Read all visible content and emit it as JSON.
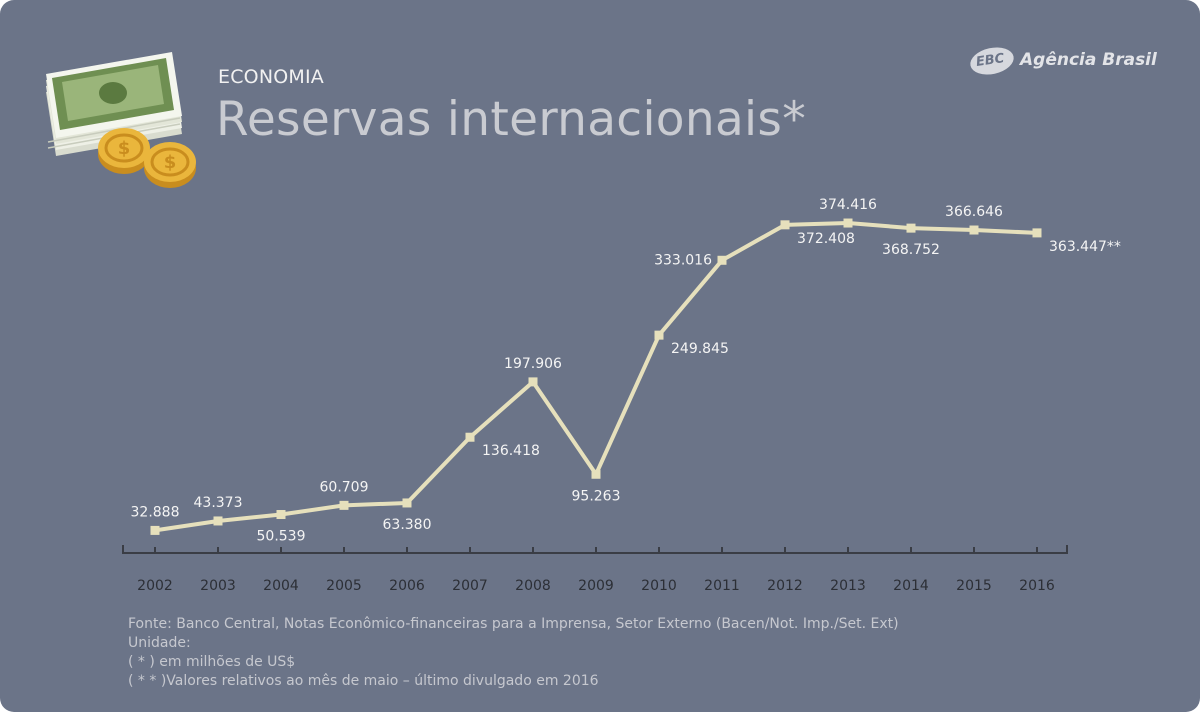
{
  "header": {
    "kicker": "ECONOMIA",
    "title": "Reservas internacionais*",
    "logo_mark": "EBC",
    "logo_text": "Agência Brasil"
  },
  "illustration": {
    "icon": "money-stack-coins-icon",
    "colors": {
      "bill": "#7a9a5a",
      "bill_light": "#e9eee0",
      "coin": "#e8b23a",
      "coin_dark": "#c98d1e"
    }
  },
  "colors": {
    "background": "#6b7488",
    "line": "#e6e0bc",
    "axis": "#3a3d45",
    "label": "#f4f4f4",
    "tick_label": "#2c2f36"
  },
  "chart_data": {
    "type": "line",
    "title": "Reservas internacionais*",
    "x": [
      "2002",
      "2003",
      "2004",
      "2005",
      "2006",
      "2007",
      "2008",
      "2009",
      "2010",
      "2011",
      "2012",
      "2013",
      "2014",
      "2015",
      "2016"
    ],
    "series": [
      {
        "values": [
          32.888,
          43.373,
          50.539,
          60.709,
          63.38,
          136.418,
          197.906,
          95.263,
          249.845,
          333.016,
          372.408,
          374.416,
          368.752,
          366.646,
          363.447
        ]
      }
    ],
    "data_labels": [
      "32.888",
      "43.373",
      "50.539",
      "60.709",
      "63.380",
      "136.418",
      "197.906",
      "95.263",
      "249.845",
      "333.016",
      "372.408",
      "374.416",
      "368.752",
      "366.646",
      "363.447**"
    ],
    "label_position": [
      "above",
      "above",
      "below",
      "above",
      "below",
      "right",
      "above",
      "below",
      "right",
      "left",
      "right",
      "above",
      "below",
      "above",
      "right"
    ],
    "ylim": [
      0,
      400
    ],
    "grid": false,
    "legend": "none"
  },
  "footer": {
    "source": "Fonte: Banco Central, Notas Econômico-financeiras para a Imprensa, Setor Externo (Bacen/Not. Imp./Set. Ext)",
    "unit_heading": "Unidade:",
    "note_1": "( * ) em milhões de US$",
    "note_2": "( * * )Valores relativos ao mês de maio – último divulgado em 2016"
  }
}
